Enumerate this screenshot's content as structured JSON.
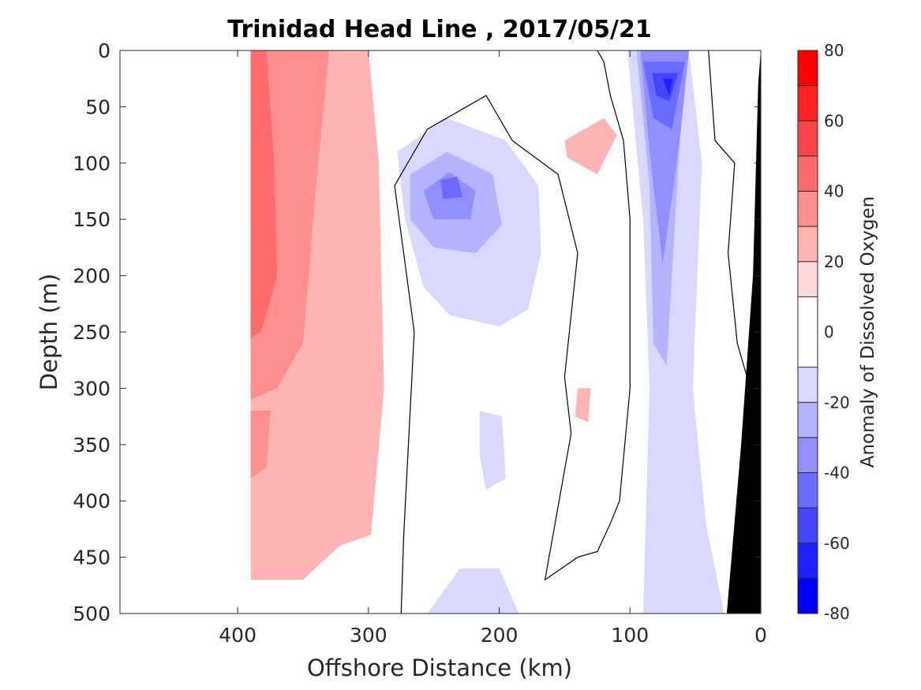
{
  "chart_data": {
    "type": "heatmap",
    "title": "Trinidad Head Line , 2017/05/21",
    "xlabel": "Offshore Distance (km)",
    "ylabel": "Depth (m)",
    "xlim": [
      490,
      0
    ],
    "ylim": [
      0,
      500
    ],
    "x_ticks": [
      400,
      300,
      200,
      100,
      0
    ],
    "y_ticks": [
      0,
      50,
      100,
      150,
      200,
      250,
      300,
      350,
      400,
      450,
      500
    ],
    "x_reversed": true,
    "y_reversed": true,
    "colorbar": {
      "label": "Anomaly of Dissolved Oxygen",
      "range": [
        -80,
        80
      ],
      "ticks": [
        80,
        60,
        40,
        20,
        0,
        -20,
        -40,
        -60,
        -80
      ],
      "levels": [
        -80,
        -70,
        -60,
        -50,
        -40,
        -30,
        -20,
        -10,
        10,
        20,
        30,
        40,
        50,
        60,
        70,
        80
      ],
      "colors": [
        "#0000ff",
        "#2020ff",
        "#4545ff",
        "#6a6aff",
        "#8f8fff",
        "#b3b3ff",
        "#d8d8ff",
        "#ffffff",
        "#ffd8d8",
        "#ffb3b3",
        "#ff8f8f",
        "#ff6a6a",
        "#ff4545",
        "#ff2020",
        "#ff0000"
      ]
    },
    "regions": [
      {
        "level": 20,
        "points": [
          [
            390,
            0
          ],
          [
            300,
            0
          ],
          [
            292,
            100
          ],
          [
            288,
            300
          ],
          [
            298,
            430
          ],
          [
            322,
            440
          ],
          [
            350,
            470
          ],
          [
            390,
            470
          ]
        ]
      },
      {
        "level": 30,
        "points": [
          [
            390,
            0
          ],
          [
            330,
            0
          ],
          [
            340,
            120
          ],
          [
            350,
            260
          ],
          [
            370,
            300
          ],
          [
            390,
            310
          ]
        ]
      },
      {
        "level": 30,
        "points": [
          [
            390,
            320
          ],
          [
            375,
            320
          ],
          [
            378,
            370
          ],
          [
            390,
            380
          ]
        ]
      },
      {
        "level": 40,
        "points": [
          [
            390,
            0
          ],
          [
            378,
            0
          ],
          [
            372,
            100
          ],
          [
            370,
            200
          ],
          [
            382,
            250
          ],
          [
            390,
            255
          ]
        ]
      },
      {
        "level": -20,
        "points": [
          [
            278,
            90
          ],
          [
            240,
            60
          ],
          [
            195,
            80
          ],
          [
            170,
            120
          ],
          [
            168,
            180
          ],
          [
            178,
            230
          ],
          [
            200,
            245
          ],
          [
            238,
            235
          ],
          [
            258,
            210
          ],
          [
            272,
            150
          ]
        ]
      },
      {
        "level": -30,
        "points": [
          [
            268,
            110
          ],
          [
            240,
            90
          ],
          [
            205,
            110
          ],
          [
            198,
            155
          ],
          [
            218,
            180
          ],
          [
            250,
            175
          ],
          [
            268,
            150
          ]
        ]
      },
      {
        "level": -40,
        "points": [
          [
            258,
            125
          ],
          [
            238,
            108
          ],
          [
            218,
            125
          ],
          [
            222,
            150
          ],
          [
            250,
            150
          ]
        ]
      },
      {
        "level": -50,
        "points": [
          [
            245,
            115
          ],
          [
            232,
            112
          ],
          [
            228,
            130
          ],
          [
            243,
            132
          ]
        ]
      },
      {
        "level": -20,
        "points": [
          [
            215,
            320
          ],
          [
            198,
            325
          ],
          [
            195,
            380
          ],
          [
            210,
            390
          ],
          [
            215,
            360
          ]
        ]
      },
      {
        "level": -20,
        "points": [
          [
            230,
            460
          ],
          [
            200,
            460
          ],
          [
            185,
            500
          ],
          [
            255,
            500
          ]
        ]
      },
      {
        "level": -20,
        "points": [
          [
            102,
            0
          ],
          [
            55,
            0
          ],
          [
            45,
            100
          ],
          [
            52,
            300
          ],
          [
            42,
            420
          ],
          [
            28,
            500
          ],
          [
            90,
            500
          ],
          [
            85,
            300
          ],
          [
            90,
            150
          ]
        ]
      },
      {
        "level": -30,
        "points": [
          [
            95,
            0
          ],
          [
            55,
            0
          ],
          [
            62,
            80
          ],
          [
            72,
            280
          ],
          [
            82,
            260
          ],
          [
            85,
            120
          ]
        ]
      },
      {
        "level": -40,
        "points": [
          [
            92,
            0
          ],
          [
            55,
            0
          ],
          [
            62,
            80
          ],
          [
            75,
            190
          ],
          [
            85,
            90
          ]
        ]
      },
      {
        "level": -50,
        "points": [
          [
            90,
            10
          ],
          [
            58,
            10
          ],
          [
            68,
            70
          ],
          [
            82,
            60
          ]
        ]
      },
      {
        "level": -60,
        "points": [
          [
            83,
            20
          ],
          [
            63,
            20
          ],
          [
            70,
            45
          ],
          [
            80,
            40
          ]
        ]
      },
      {
        "level": -70,
        "points": [
          [
            75,
            25
          ],
          [
            67,
            25
          ],
          [
            70,
            40
          ]
        ]
      },
      {
        "level": 20,
        "points": [
          [
            150,
            80
          ],
          [
            120,
            60
          ],
          [
            110,
            75
          ],
          [
            125,
            110
          ],
          [
            148,
            95
          ]
        ]
      },
      {
        "level": 20,
        "points": [
          [
            140,
            300
          ],
          [
            130,
            300
          ],
          [
            132,
            330
          ],
          [
            142,
            325
          ]
        ]
      }
    ],
    "zero_contours": [
      {
        "points": [
          [
            275,
            500
          ],
          [
            273,
            430
          ],
          [
            265,
            250
          ],
          [
            280,
            120
          ],
          [
            255,
            70
          ],
          [
            210,
            40
          ],
          [
            190,
            80
          ],
          [
            155,
            110
          ],
          [
            140,
            180
          ],
          [
            150,
            290
          ],
          [
            145,
            340
          ],
          [
            165,
            470
          ],
          [
            140,
            450
          ],
          [
            125,
            445
          ],
          [
            115,
            420
          ],
          [
            108,
            400
          ],
          [
            100,
            300
          ],
          [
            100,
            150
          ],
          [
            105,
            80
          ],
          [
            115,
            40
          ],
          [
            120,
            10
          ],
          [
            125,
            0
          ]
        ]
      },
      {
        "points": [
          [
            40,
            0
          ],
          [
            35,
            80
          ],
          [
            20,
            100
          ],
          [
            25,
            180
          ],
          [
            18,
            260
          ],
          [
            8,
            300
          ]
        ]
      }
    ],
    "topography": {
      "label": "seafloor",
      "points": [
        [
          0,
          0
        ],
        [
          2,
          30
        ],
        [
          6,
          200
        ],
        [
          15,
          350
        ],
        [
          26,
          500
        ],
        [
          0,
          500
        ]
      ]
    }
  }
}
